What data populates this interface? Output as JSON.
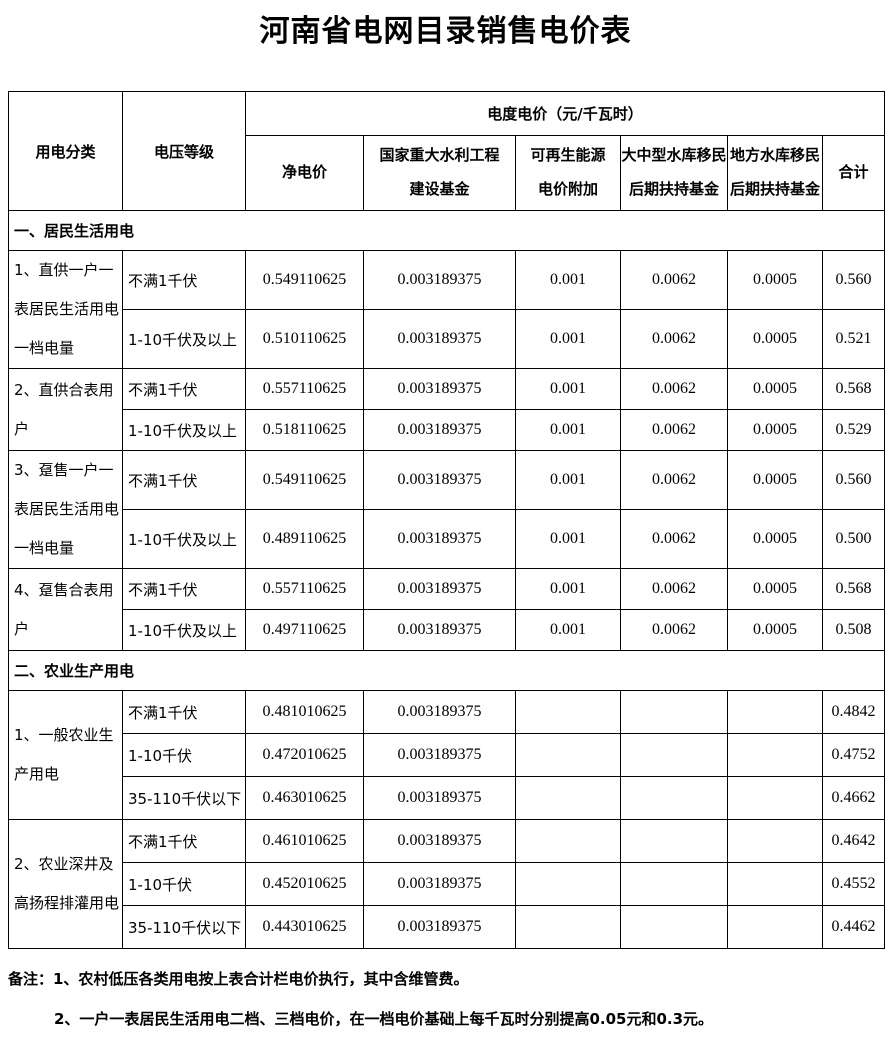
{
  "title": "河南省电网目录销售电价表",
  "table": {
    "header": {
      "col_usage": "用电分类",
      "col_voltage": "电压等级",
      "group_price": "电度电价（元/千瓦时）",
      "col_net": "净电价",
      "col_fund1": [
        "国家重大水利工程",
        "建设基金"
      ],
      "col_renewable": [
        "可再生能源",
        "电价附加"
      ],
      "col_res_large": [
        "大中型水库移民",
        "后期扶持基金"
      ],
      "col_res_local": [
        "地方水库移民",
        "后期扶持基金"
      ],
      "col_total": "合计"
    },
    "sections": [
      {
        "name": "一、居民生活用电",
        "groups": [
          {
            "category": "1、直供一户一表居民生活用电一档电量",
            "rows": [
              [
                "不满1千伏",
                "0.549110625",
                "0.003189375",
                "0.001",
                "0.0062",
                "0.0005",
                "0.560"
              ],
              [
                "1-10千伏及以上",
                "0.510110625",
                "0.003189375",
                "0.001",
                "0.0062",
                "0.0005",
                "0.521"
              ]
            ]
          },
          {
            "category": "2、直供合表用户",
            "rows": [
              [
                "不满1千伏",
                "0.557110625",
                "0.003189375",
                "0.001",
                "0.0062",
                "0.0005",
                "0.568"
              ],
              [
                "1-10千伏及以上",
                "0.518110625",
                "0.003189375",
                "0.001",
                "0.0062",
                "0.0005",
                "0.529"
              ]
            ]
          },
          {
            "category": "3、趸售一户一表居民生活用电一档电量",
            "rows": [
              [
                "不满1千伏",
                "0.549110625",
                "0.003189375",
                "0.001",
                "0.0062",
                "0.0005",
                "0.560"
              ],
              [
                "1-10千伏及以上",
                "0.489110625",
                "0.003189375",
                "0.001",
                "0.0062",
                "0.0005",
                "0.500"
              ]
            ]
          },
          {
            "category": "4、趸售合表用户",
            "rows": [
              [
                "不满1千伏",
                "0.557110625",
                "0.003189375",
                "0.001",
                "0.0062",
                "0.0005",
                "0.568"
              ],
              [
                "1-10千伏及以上",
                "0.497110625",
                "0.003189375",
                "0.001",
                "0.0062",
                "0.0005",
                "0.508"
              ]
            ]
          }
        ]
      },
      {
        "name": "二、农业生产用电",
        "groups": [
          {
            "category": "1、一般农业生产用电",
            "rows": [
              [
                "不满1千伏",
                "0.481010625",
                "0.003189375",
                "",
                "",
                "",
                "0.4842"
              ],
              [
                "1-10千伏",
                "0.472010625",
                "0.003189375",
                "",
                "",
                "",
                "0.4752"
              ],
              [
                "35-110千伏以下",
                "0.463010625",
                "0.003189375",
                "",
                "",
                "",
                "0.4662"
              ]
            ]
          },
          {
            "category": "2、农业深井及高扬程排灌用电",
            "rows": [
              [
                "不满1千伏",
                "0.461010625",
                "0.003189375",
                "",
                "",
                "",
                "0.4642"
              ],
              [
                "1-10千伏",
                "0.452010625",
                "0.003189375",
                "",
                "",
                "",
                "0.4552"
              ],
              [
                "35-110千伏以下",
                "0.443010625",
                "0.003189375",
                "",
                "",
                "",
                "0.4462"
              ]
            ]
          }
        ]
      }
    ]
  },
  "notes": [
    "备注：1、农村低压各类用电按上表合计栏电价执行，其中含维管费。",
    "2、一户一表居民生活用电二档、三档电价，在一档电价基础上每千瓦时分别提高0.05元和0.3元。"
  ]
}
